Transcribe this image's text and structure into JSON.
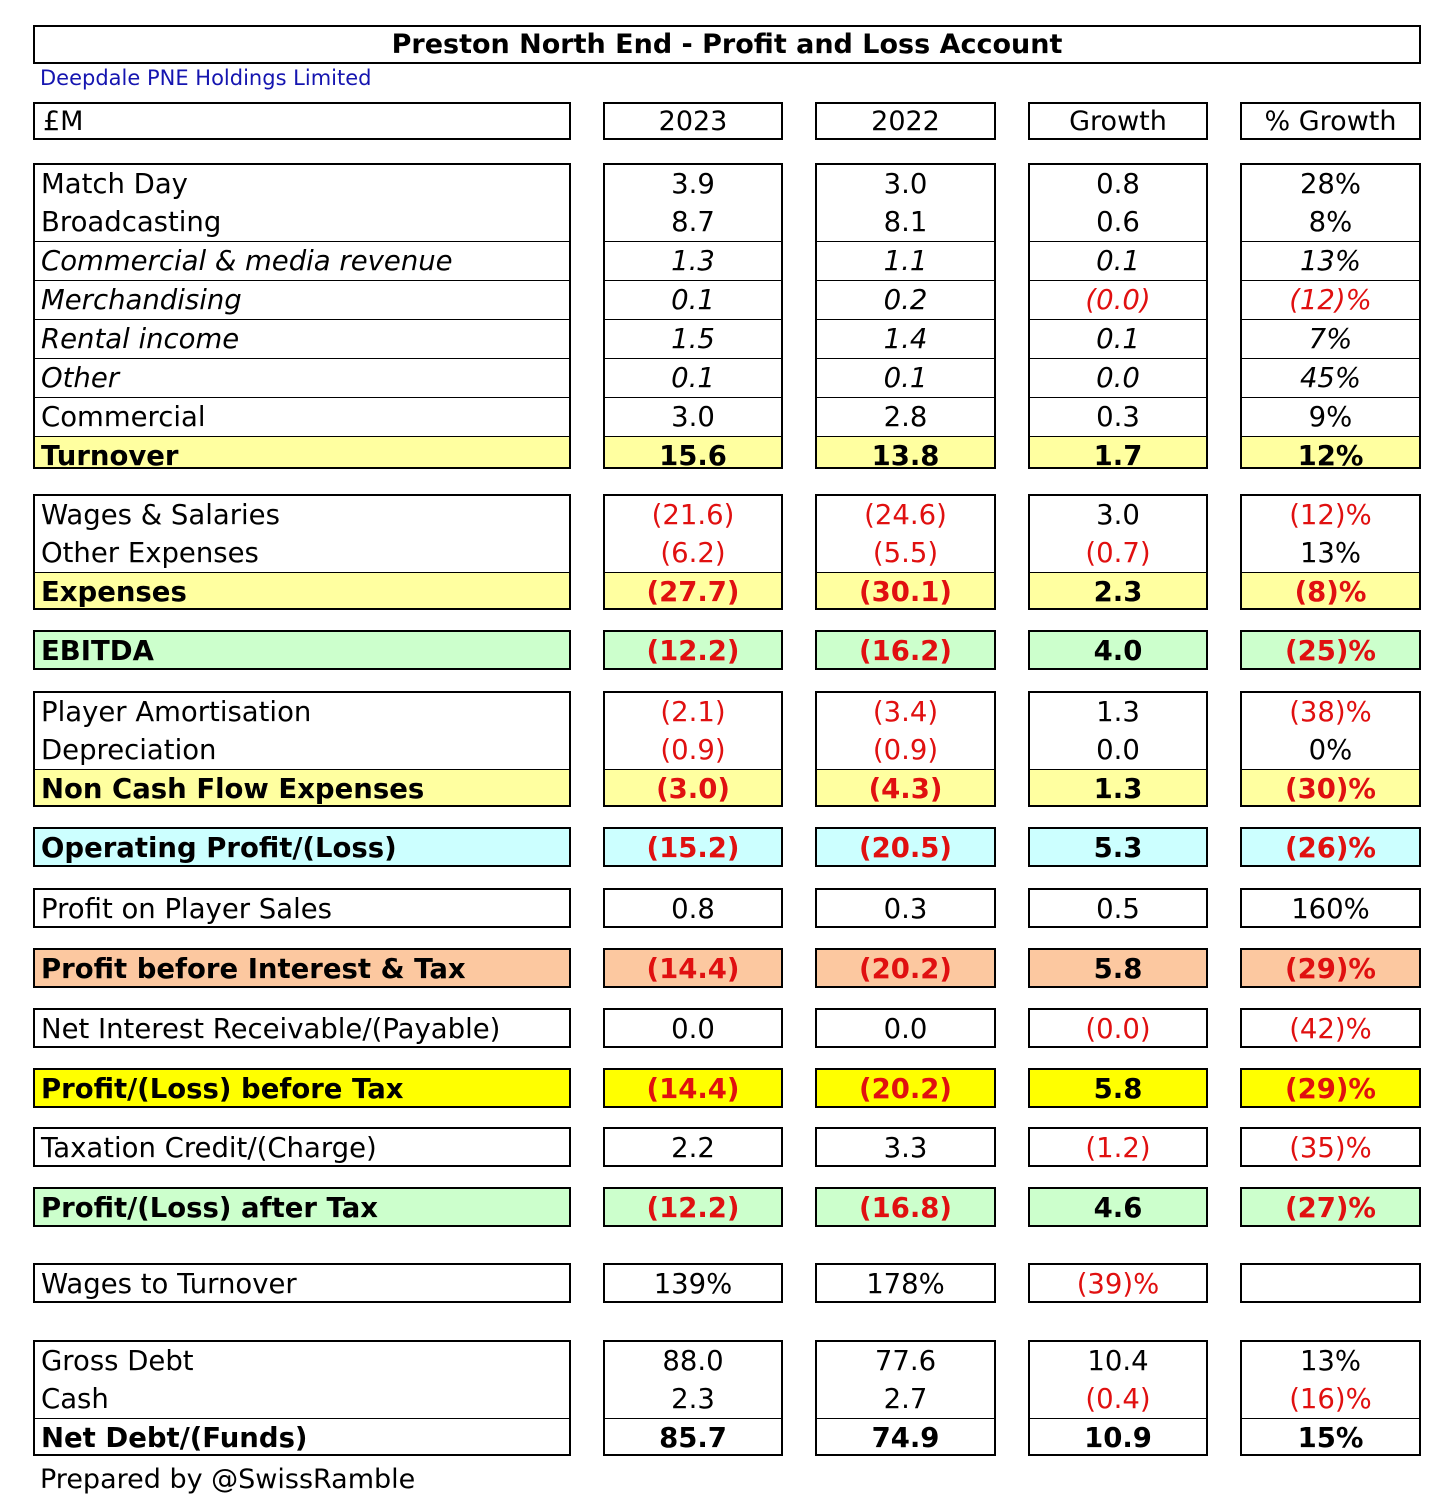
{
  "title": "Preston North End - Profit and Loss Account",
  "subtitle": "Deepdale PNE Holdings Limited",
  "headers": [
    "£M",
    "2023",
    "2022",
    "Growth",
    "% Growth"
  ],
  "footer": "Prepared by @SwissRamble",
  "colors": {
    "negative": "#e01010",
    "subtitle": "#1515b0",
    "highlight_yellow": "#ffffa0",
    "highlight_green": "#ccffcc",
    "highlight_cyan": "#ccffff",
    "highlight_orange": "#fcc8a0",
    "highlight_bright_yellow": "#ffff00"
  },
  "groups": [
    {
      "rows": [
        {
          "label": "Match Day",
          "values": [
            "3.9",
            "3.0",
            "0.8",
            "28%"
          ]
        },
        {
          "label": "Broadcasting",
          "values": [
            "8.7",
            "8.1",
            "0.6",
            "8%"
          ]
        },
        {
          "label": "Commercial & media revenue",
          "italic": true,
          "values": [
            "1.3",
            "1.1",
            "0.1",
            "13%"
          ]
        },
        {
          "label": "Merchandising",
          "italic": true,
          "values": [
            "0.1",
            "0.2",
            "(0.0)",
            "(12)%"
          ]
        },
        {
          "label": "Rental income",
          "italic": true,
          "values": [
            "1.5",
            "1.4",
            "0.1",
            "7%"
          ]
        },
        {
          "label": "Other",
          "italic": true,
          "values": [
            "0.1",
            "0.1",
            "0.0",
            "45%"
          ]
        },
        {
          "label": "Commercial",
          "values": [
            "3.0",
            "2.8",
            "0.3",
            "9%"
          ]
        },
        {
          "label": "Turnover",
          "bold": true,
          "bg": "yellow",
          "values": [
            "15.6",
            "13.8",
            "1.7",
            "12%"
          ]
        }
      ]
    },
    {
      "rows": [
        {
          "label": "Wages & Salaries",
          "values": [
            "(21.6)",
            "(24.6)",
            "3.0",
            "(12)%"
          ]
        },
        {
          "label": "Other Expenses",
          "values": [
            "(6.2)",
            "(5.5)",
            "(0.7)",
            "13%"
          ]
        },
        {
          "label": "Expenses",
          "bold": true,
          "bg": "yellow",
          "values": [
            "(27.7)",
            "(30.1)",
            "2.3",
            "(8)%"
          ]
        }
      ]
    },
    {
      "rows": [
        {
          "label": "EBITDA",
          "bold": true,
          "bg": "green",
          "values": [
            "(12.2)",
            "(16.2)",
            "4.0",
            "(25)%"
          ]
        }
      ]
    },
    {
      "rows": [
        {
          "label": "Player Amortisation",
          "values": [
            "(2.1)",
            "(3.4)",
            "1.3",
            "(38)%"
          ]
        },
        {
          "label": "Depreciation",
          "values": [
            "(0.9)",
            "(0.9)",
            "0.0",
            "0%"
          ]
        },
        {
          "label": "Non Cash Flow Expenses",
          "bold": true,
          "bg": "yellow",
          "values": [
            "(3.0)",
            "(4.3)",
            "1.3",
            "(30)%"
          ]
        }
      ]
    },
    {
      "rows": [
        {
          "label": "Operating Profit/(Loss)",
          "bold": true,
          "bg": "cyan",
          "values": [
            "(15.2)",
            "(20.5)",
            "5.3",
            "(26)%"
          ]
        }
      ]
    },
    {
      "rows": [
        {
          "label": "Profit on Player Sales",
          "values": [
            "0.8",
            "0.3",
            "0.5",
            "160%"
          ]
        }
      ]
    },
    {
      "rows": [
        {
          "label": "Profit before Interest & Tax",
          "bold": true,
          "bg": "orange",
          "values": [
            "(14.4)",
            "(20.2)",
            "5.8",
            "(29)%"
          ]
        }
      ]
    },
    {
      "rows": [
        {
          "label": "Net Interest Receivable/(Payable)",
          "values": [
            "0.0",
            "0.0",
            "(0.0)",
            "(42)%"
          ]
        }
      ]
    },
    {
      "rows": [
        {
          "label": "Profit/(Loss) before Tax",
          "bold": true,
          "bg": "brightyellow",
          "values": [
            "(14.4)",
            "(20.2)",
            "5.8",
            "(29)%"
          ]
        }
      ]
    },
    {
      "rows": [
        {
          "label": "Taxation Credit/(Charge)",
          "values": [
            "2.2",
            "3.3",
            "(1.2)",
            "(35)%"
          ]
        }
      ]
    },
    {
      "rows": [
        {
          "label": "Profit/(Loss) after Tax",
          "bold": true,
          "bg": "green",
          "values": [
            "(12.2)",
            "(16.8)",
            "4.6",
            "(27)%"
          ]
        }
      ]
    },
    {
      "rows": [
        {
          "label": "Wages to Turnover",
          "values": [
            "139%",
            "178%",
            "(39)%",
            ""
          ]
        }
      ]
    },
    {
      "rows": [
        {
          "label": "Gross Debt",
          "values": [
            "88.0",
            "77.6",
            "10.4",
            "13%"
          ]
        },
        {
          "label": "Cash",
          "values": [
            "2.3",
            "2.7",
            "(0.4)",
            "(16)%"
          ]
        },
        {
          "label": "Net Debt/(Funds)",
          "bold": true,
          "values": [
            "85.7",
            "74.9",
            "10.9",
            "15%"
          ]
        }
      ]
    }
  ]
}
